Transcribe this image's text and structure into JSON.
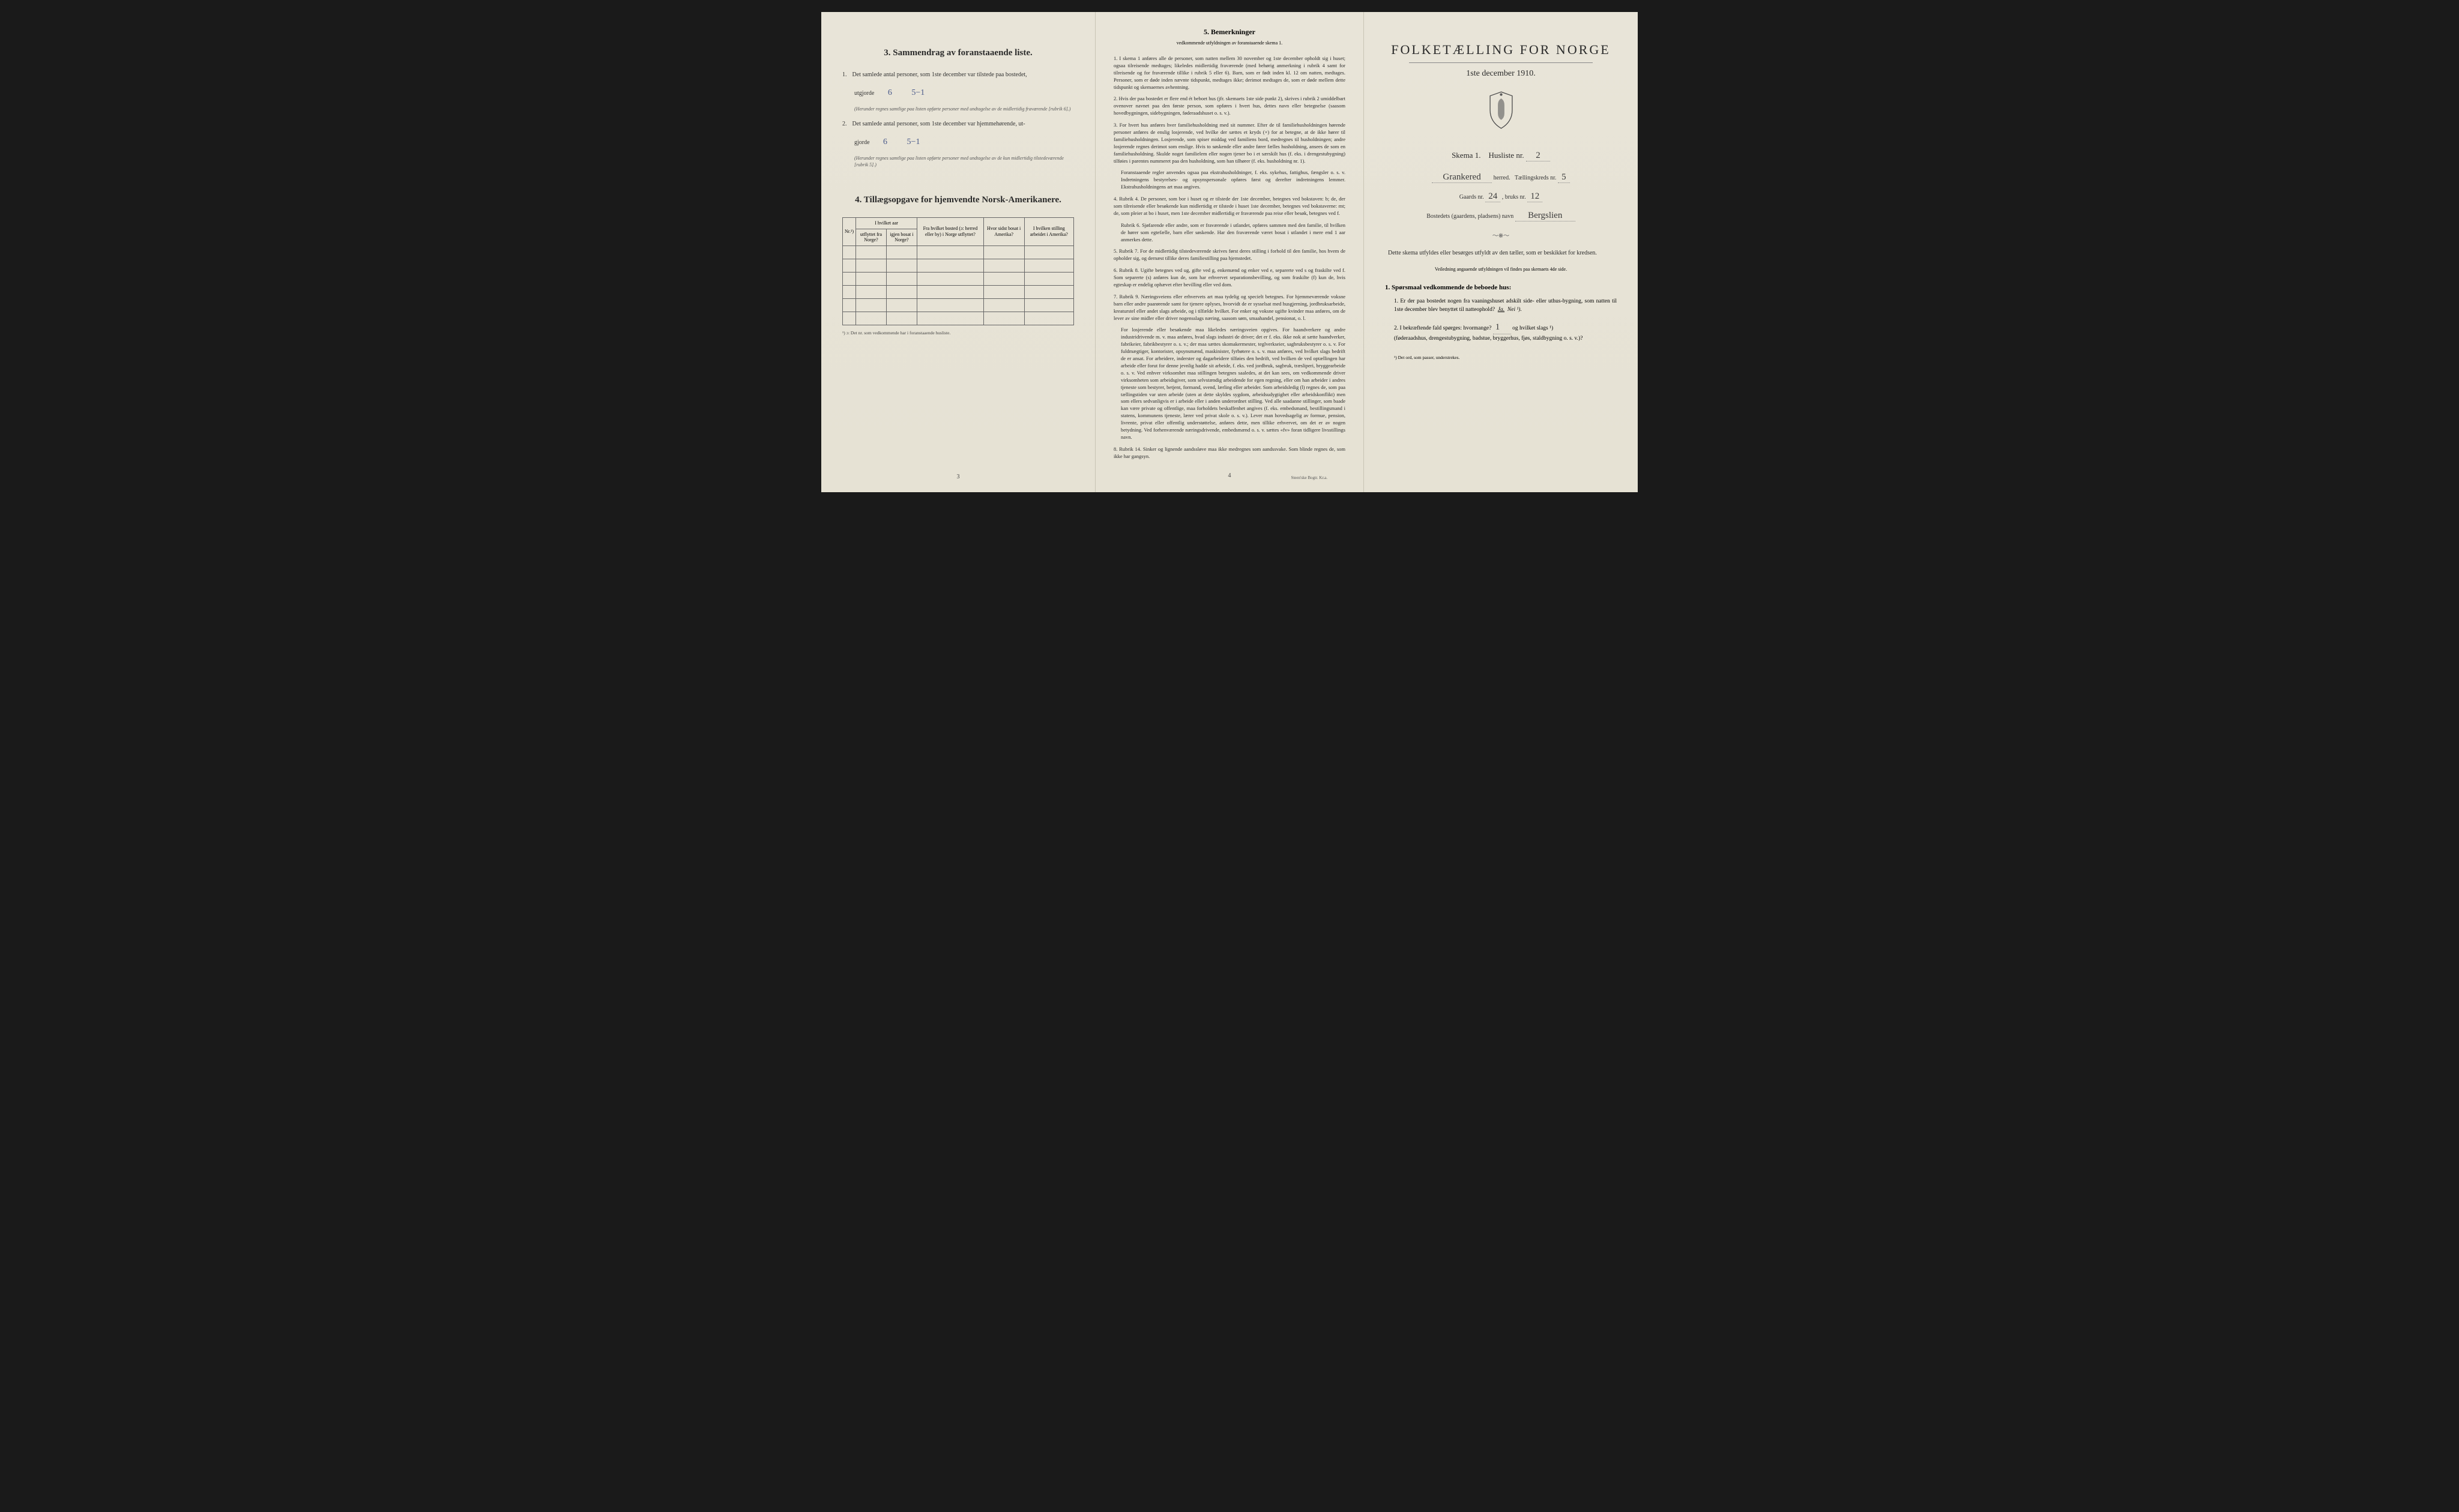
{
  "left": {
    "section3": {
      "num": "3.",
      "title": "Sammendrag av foranstaaende liste.",
      "item1": {
        "num": "1.",
        "text": "Det samlede antal personer, som 1ste december var tilstede paa bostedet,",
        "label": "utgjorde",
        "value": "6",
        "value2": "5−1",
        "note": "(Herunder regnes samtlige paa listen opførte personer med undtagelse av de midlertidig fraværende [rubrik 6].)"
      },
      "item2": {
        "num": "2.",
        "text": "Det samlede antal personer, som 1ste december var hjemmehørende, ut-",
        "label": "gjorde",
        "value": "6",
        "value2": "5−1",
        "note": "(Herunder regnes samtlige paa listen opførte personer med undtagelse av de kun midlertidig tilstedeværende [rubrik 5].)"
      }
    },
    "section4": {
      "num": "4.",
      "title": "Tillægsopgave for hjemvendte Norsk-Amerikanere.",
      "headers": {
        "nr": "Nr.¹)",
        "group1": "I hvilket aar",
        "col1": "utflyttet fra Norge?",
        "col2": "igjen bosat i Norge?",
        "col3": "Fra hvilket bosted (ɔ: herred eller by) i Norge utflyttet?",
        "col4": "Hvor sidst bosat i Amerika?",
        "col5": "I hvilken stilling arbeidet i Amerika?"
      },
      "footnote": "¹) ɔ: Det nr. som vedkommende har i foranstaaende husliste."
    },
    "pagenum": "3"
  },
  "middle": {
    "title_num": "5.",
    "title": "Bemerkninger",
    "subtitle": "vedkommende utfyldningen av foranstaaende skema 1.",
    "items": [
      {
        "num": "1.",
        "text": "I skema 1 anføres alle de personer, som natten mellem 30 november og 1ste december opholdt sig i huset; ogsaa tilreisende medtages; likeledes midlertidig fraværende (med behørig anmerkning i rubrik 4 samt for tilreisende og for fraværende tillike i rubrik 5 eller 6). Barn, som er født inden kl. 12 om natten, medtages. Personer, som er døde inden nævnte tidspunkt, medtages ikke; derimot medtages de, som er døde mellem dette tidspunkt og skemaernes avhentning."
      },
      {
        "num": "2.",
        "text": "Hvis der paa bostedet er flere end ét beboet hus (jfr. skemaets 1ste side punkt 2), skrives i rubrik 2 umiddelbart ovenover navnet paa den første person, som opføres i hvert hus, dettes navn eller betegnelse (saasom hovedbygningen, sidebygningen, føderaadshuset o. s. v.)."
      },
      {
        "num": "3.",
        "text": "For hvert hus anføres hver familiehusholdning med sit nummer. Efter de til familiehusholdningen hørende personer anføres de enslig losjerende, ved hvilke der sættes et kryds (×) for at betegne, at de ikke hører til familiehusholdningen. Losjerende, som spiser middag ved familiens bord, medregnes til husholdningen; andre losjerende regnes derimot som enslige. Hvis to søskende eller andre fører fælles husholdning, ansees de som en familiehusholdning. Skulde noget familielem eller nogen tjener bo i et særskilt hus (f. eks. i drengestubygning) tilføies i parentes nummeret paa den husholdning, som han tilhører (f. eks. husholdning nr. 1).",
        "sub": "Foranstaaende regler anvendes ogsaa paa ekstrahusholdninger, f. eks. sykehus, fattighus, fængsler o. s. v. Indretningens bestyrelses- og opsynspersonale opføres først og derefter indretningens lemmer. Ekstrahusholdningens art maa angives."
      },
      {
        "num": "4.",
        "text": "Rubrik 4. De personer, som bor i huset og er tilstede der 1ste december, betegnes ved bokstaven: b; de, der som tilreisende eller besøkende kun midlertidig er tilstede i huset 1ste december, betegnes ved bokstaverne: mt; de, som pleier at bo i huset, men 1ste december midlertidig er fraværende paa reise eller besøk, betegnes ved f.",
        "sub": "Rubrik 6. Sjøfarende eller andre, som er fraværende i utlandet, opføres sammen med den familie, til hvilken de hører som egtefælle, barn eller søskende. Har den fraværende været bosat i utlandet i mere end 1 aar anmerkes dette."
      },
      {
        "num": "5.",
        "text": "Rubrik 7. For de midlertidig tilstedeværende skrives først deres stilling i forhold til den familie, hos hvem de opholder sig, og dernæst tillike deres familiestilling paa hjemstedet."
      },
      {
        "num": "6.",
        "text": "Rubrik 8. Ugifte betegnes ved ug, gifte ved g, enkemænd og enker ved e, separerte ved s og fraskilte ved f. Som separerte (s) anføres kun de, som har erhvervet separationsbevilling, og som fraskilte (f) kun de, hvis egteskap er endelig ophævet efter bevilling eller ved dom."
      },
      {
        "num": "7.",
        "text": "Rubrik 9. Næringsveiens eller erhvervets art maa tydelig og specielt betegnes. For hjemmeværende voksne barn eller andre paarørende samt for tjenere oplyses, hvorvidt de er sysselsat med husgjerning, jordbruksarbeide, kreaturstel eller andet slags arbeide, og i tilfælde hvilket. For enker og voksne ugifte kvinder maa anføres, om de lever av sine midler eller driver nogensslags næring, saasom søm, smaahandel, pensionat, o. l.",
        "sub": "For losjerende eller besøkende maa likeledes næringsveien opgives. For haandverkere og andre industridrivende m. v. maa anføres, hvad slags industri de driver; det er f. eks. ikke nok at sætte haandverker, fabrikeier, fabrikbestyrer o. s. v.; der maa sættes skomakermester, teglverkseier, sagbruksbestyrer o. s. v. For fuldmægtiger, kontorister, opsynsmænd, maskinister, fyrbøtere o. s. v. maa anføres, ved hvilket slags bedrift de er ansat. For arbeidere, inderster og dagarbeidere tilføies den bedrift, ved hvilken de ved optællingen har arbeide eller forut for denne jevnlig hadde sit arbeide, f. eks. ved jordbruk, sagbruk, træsliperi, bryggearbeide o. s. v. Ved enhver virksomhet maa stillingen betegnes saaledes, at det kan sees, om vedkommende driver virksomheten som arbeidsgiver, som selvstændig arbeidende for egen regning, eller om han arbeider i andres tjeneste som bestyrer, betjent, formand, svend, lærling eller arbeider. Som arbeidsledig (l) regnes de, som paa tællingstiden var uten arbeide (uten at dette skyldes sygdom, arbeidsudygtighet eller arbeidskonflikt) men som ellers sedvanligvis er i arbeide eller i anden underordnet stilling. Ved alle saadanne stillinger, som baade kan være private og offentlige, maa forholdets beskaffenhet angives (f. eks. embedsmand, bestillingsmand i statens, kommunens tjeneste, lærer ved privat skole o. s. v.). Lever man hovedsagelig av formue, pension, livrente, privat eller offentlig understøttelse, anføres dette, men tillike erhvervet, om det er av nogen betydning. Ved forhenværende næringsdrivende, embedsmænd o. s. v. sættes «fv» foran tidligere livsstillings navn."
      },
      {
        "num": "8.",
        "text": "Rubrik 14. Sinker og lignende aandssløve maa ikke medregnes som aandssvake. Som blinde regnes de, som ikke har gangsyn."
      }
    ],
    "pagenum": "4",
    "printer": "Steen'ske Bogtr. Kr.a."
  },
  "right": {
    "title": "FOLKETÆLLING FOR NORGE",
    "date": "1ste december 1910.",
    "skema": "Skema 1.",
    "husliste": "Husliste nr.",
    "husliste_val": "2",
    "herred_val": "Grankered",
    "herred_label": "herred.",
    "taelling_label": "Tællingskreds nr.",
    "taelling_val": "5",
    "gaards_label": "Gaards nr.",
    "gaards_val": "24",
    "bruks_label": ", bruks nr.",
    "bruks_val": "12",
    "bosted_label": "Bostedets (gaardens, pladsens) navn",
    "bosted_val": "Bergslien",
    "instruction": "Dette skema utfyldes eller besørges utfyldt av den tæller, som er beskikket for kredsen.",
    "instruction_sub": "Veiledning angaaende utfyldningen vil findes paa skemaets 4de side.",
    "q_title_num": "1.",
    "q_title": "Spørsmaal vedkommende de beboede hus:",
    "q1": {
      "num": "1.",
      "text": "Er der paa bostedet nogen fra vaaningshuset adskilt side- eller uthus-bygning, som natten til 1ste december blev benyttet til natteophold?",
      "ja": "Ja.",
      "nei": "Nei ¹)."
    },
    "q2": {
      "num": "2.",
      "text_a": "I bekræftende fald spørges: hvormange?",
      "val": "1",
      "text_b": "og hvilket slags ¹)",
      "text_c": "(føderaadshus, drengestubygning, badstue, bryggerhus, fjøs, staldbygning o. s. v.)?"
    },
    "footnote": "¹) Det ord, som passer, understrekes."
  }
}
